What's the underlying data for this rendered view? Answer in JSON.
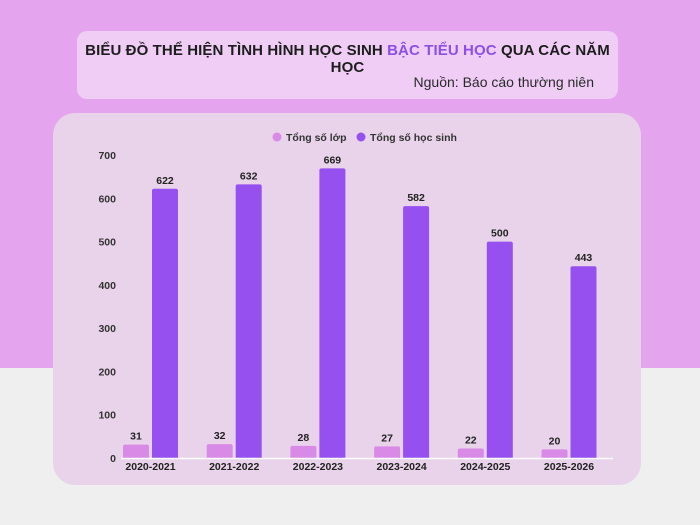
{
  "title": {
    "prefix": "BIỂU ĐỒ THỂ HIỆN TÌNH HÌNH HỌC SINH ",
    "highlight": "BẬC TIỂU HỌC",
    "suffix": " QUA CÁC NĂM HỌC"
  },
  "source": "Nguồn: Báo cáo thường niên",
  "colors": {
    "background_top": "#e4a5ee",
    "title_highlight": "#8d4fe6",
    "classes_bar": "#d98ae6",
    "students_bar": "#9650f0"
  },
  "chart_data": {
    "type": "bar",
    "categories": [
      "2020-2021",
      "2021-2022",
      "2022-2023",
      "2023-2024",
      "2024-2025",
      "2025-2026"
    ],
    "series": [
      {
        "name": "Tổng số lớp",
        "values": [
          31,
          32,
          28,
          27,
          22,
          20
        ]
      },
      {
        "name": "Tổng số học sinh",
        "values": [
          622,
          632,
          669,
          582,
          500,
          443
        ]
      }
    ],
    "ylim": [
      0,
      700
    ],
    "yticks": [
      0,
      100,
      200,
      300,
      400,
      500,
      600,
      700
    ],
    "grid": false,
    "legend": "top-center",
    "data_labels": true
  }
}
